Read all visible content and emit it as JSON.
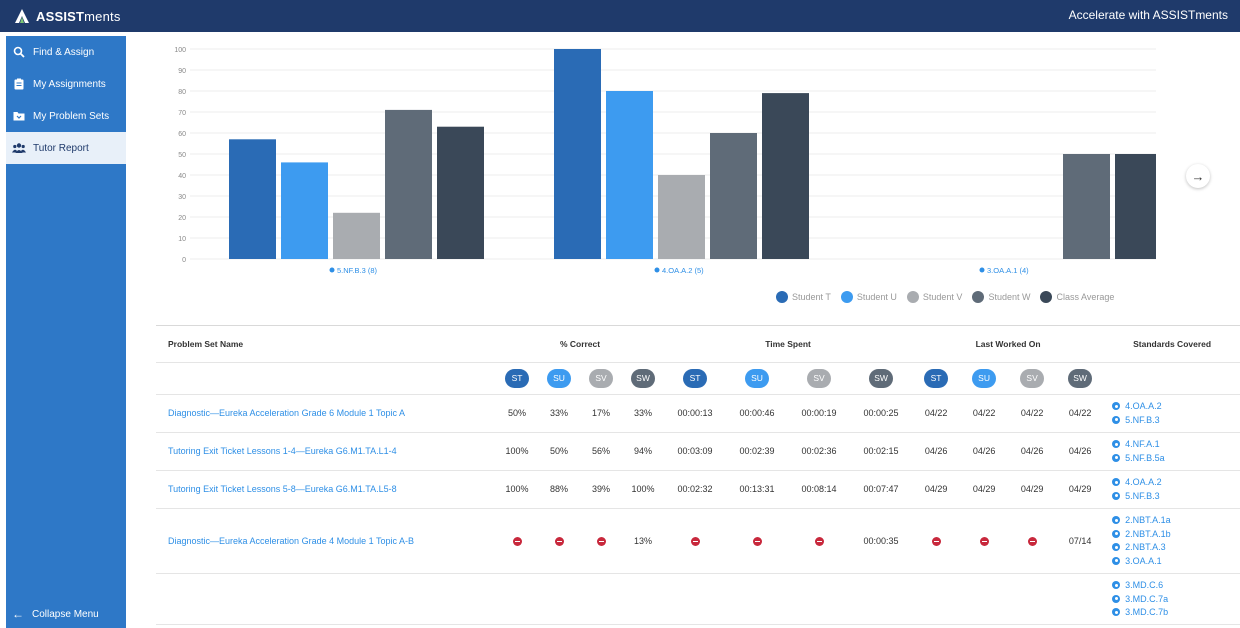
{
  "app": {
    "logo_bold": "ASSIST",
    "logo_rest": "ments",
    "top_right": "Accelerate with ASSISTments"
  },
  "sidebar": {
    "items": [
      {
        "label": "Find & Assign",
        "icon": "search-icon"
      },
      {
        "label": "My Assignments",
        "icon": "clipboard-icon"
      },
      {
        "label": "My Problem Sets",
        "icon": "folder-icon"
      },
      {
        "label": "Tutor Report",
        "icon": "users-icon"
      }
    ],
    "collapse_label": "Collapse Menu"
  },
  "chart_data": {
    "type": "bar",
    "categories": [
      "5.NF.B.3 (8)",
      "4.OA.A.2 (5)",
      "3.OA.A.1 (4)"
    ],
    "series": [
      {
        "name": "Student T",
        "color": "#2a6bb5",
        "values": [
          57,
          100,
          null
        ]
      },
      {
        "name": "Student U",
        "color": "#3d9bf0",
        "values": [
          46,
          80,
          null
        ]
      },
      {
        "name": "Student V",
        "color": "#a9acb0",
        "values": [
          22,
          40,
          null
        ]
      },
      {
        "name": "Student W",
        "color": "#5f6b78",
        "values": [
          71,
          60,
          50
        ]
      },
      {
        "name": "Class Average",
        "color": "#3a4858",
        "values": [
          63,
          79,
          50
        ]
      }
    ],
    "yticks": [
      0,
      10,
      20,
      30,
      40,
      50,
      60,
      70,
      80,
      90,
      100
    ],
    "ylim": [
      0,
      100
    ],
    "grid": true,
    "legend": "bottom-right"
  },
  "table": {
    "headers": {
      "name": "Problem Set Name",
      "correct": "% Correct",
      "time": "Time Spent",
      "last": "Last Worked On",
      "standards": "Standards Covered"
    },
    "pills": [
      {
        "label": "ST",
        "color": "#2a6bb5"
      },
      {
        "label": "SU",
        "color": "#3d9bf0"
      },
      {
        "label": "SV",
        "color": "#a9acb0"
      },
      {
        "label": "SW",
        "color": "#5f6b78"
      }
    ],
    "rows": [
      {
        "name": "Diagnostic—Eureka Acceleration Grade 6 Module 1 Topic A",
        "correct": [
          "50%",
          "33%",
          "17%",
          "33%"
        ],
        "time": [
          "00:00:13",
          "00:00:46",
          "00:00:19",
          "00:00:25"
        ],
        "last": [
          "04/22",
          "04/22",
          "04/22",
          "04/22"
        ],
        "standards": [
          "4.OA.A.2",
          "5.NF.B.3"
        ]
      },
      {
        "name": "Tutoring Exit Ticket Lessons 1-4—Eureka G6.M1.TA.L1-4",
        "correct": [
          "100%",
          "50%",
          "56%",
          "94%"
        ],
        "time": [
          "00:03:09",
          "00:02:39",
          "00:02:36",
          "00:02:15"
        ],
        "last": [
          "04/26",
          "04/26",
          "04/26",
          "04/26"
        ],
        "standards": [
          "4.NF.A.1",
          "5.NF.B.5a"
        ]
      },
      {
        "name": "Tutoring Exit Ticket Lessons 5-8—Eureka G6.M1.TA.L5-8",
        "correct": [
          "100%",
          "88%",
          "39%",
          "100%"
        ],
        "time": [
          "00:02:32",
          "00:13:31",
          "00:08:14",
          "00:07:47"
        ],
        "last": [
          "04/29",
          "04/29",
          "04/29",
          "04/29"
        ],
        "standards": [
          "4.OA.A.2",
          "5.NF.B.3"
        ]
      },
      {
        "name": "Diagnostic—Eureka Acceleration Grade 4 Module 1 Topic A-B",
        "correct": [
          "",
          "",
          "",
          "13%"
        ],
        "time": [
          "",
          "",
          "",
          "00:00:35"
        ],
        "last": [
          "",
          "",
          "",
          "07/14"
        ],
        "standards": [
          "2.NBT.A.1a",
          "2.NBT.A.1b",
          "2.NBT.A.3",
          "3.OA.A.1"
        ]
      },
      {
        "name": "",
        "correct": [
          "",
          "",
          "",
          ""
        ],
        "time": [
          "",
          "",
          "",
          ""
        ],
        "last": [
          "",
          "",
          "",
          ""
        ],
        "standards": [
          "3.MD.C.6",
          "3.MD.C.7a",
          "3.MD.C.7b"
        ]
      }
    ]
  }
}
